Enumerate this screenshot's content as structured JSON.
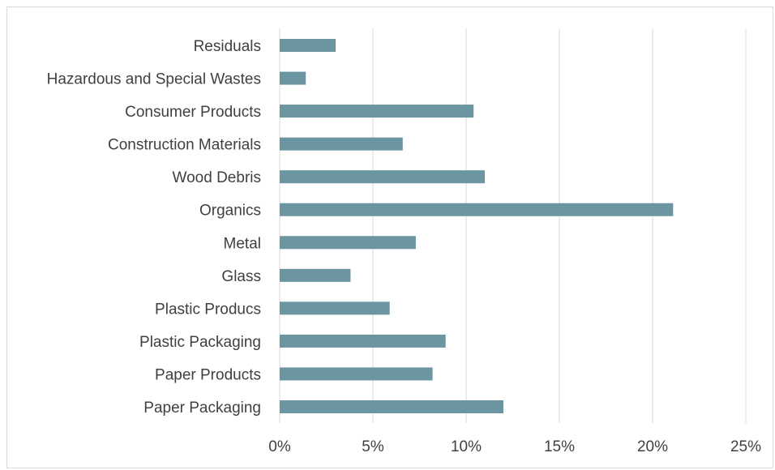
{
  "colors": {
    "bar": "#6a95a1",
    "grid": "#d9d9d9",
    "text": "#404040"
  },
  "chart_data": {
    "type": "bar",
    "orientation": "horizontal",
    "categories": [
      "Residuals",
      "Hazardous and Special Wastes",
      "Consumer Products",
      "Construction Materials",
      "Wood Debris",
      "Organics",
      "Metal",
      "Glass",
      "Plastic Producs",
      "Plastic Packaging",
      "Paper Products",
      "Paper Packaging"
    ],
    "values": [
      3.0,
      1.4,
      10.4,
      6.6,
      11.0,
      21.1,
      7.3,
      3.8,
      5.9,
      8.9,
      8.2,
      12.0
    ],
    "xlim": [
      0,
      25
    ],
    "xticks": [
      "0%",
      "5%",
      "10%",
      "15%",
      "20%",
      "25%"
    ],
    "grid": "vertical",
    "legend": "none"
  }
}
